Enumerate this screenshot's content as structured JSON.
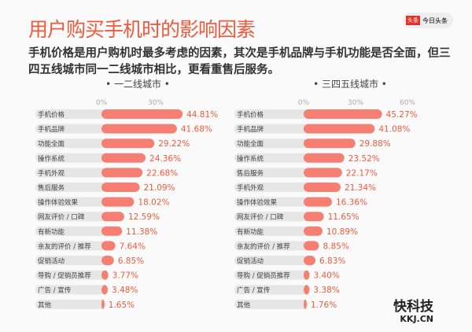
{
  "header": {
    "title": "用户购买手机时的影响因素",
    "subtitle": "手机价格是用户购机时最多考虑的因素，其次是手机品牌与手机功能是否全面，但三四五线城市同一二线城市相比，更看重售后服务。",
    "logo_badge": "头条",
    "logo_text": "今日头条"
  },
  "watermark": {
    "text": "快科技",
    "url_text": "KKJ.CN"
  },
  "colors": {
    "bar": "#f47f72",
    "track": "#e6e6e6",
    "value": "#ef5a3c"
  },
  "chart_data": [
    {
      "type": "bar",
      "orientation": "horizontal",
      "title": "一二线城市",
      "unit": "%",
      "ticks": [
        "0%",
        "30%"
      ],
      "categories": [
        "手机价格",
        "手机品牌",
        "功能全面",
        "操作系统",
        "手机外观",
        "售后服务",
        "操作体验效果",
        "网友评价 / 口碑",
        "有新功能",
        "亲友的评价 / 推荐",
        "促销活动",
        "导购 / 促销员推荐",
        "广告 / 宣传",
        "其他"
      ],
      "values": [
        44.81,
        41.68,
        29.22,
        24.36,
        22.68,
        21.09,
        18.02,
        12.59,
        11.38,
        7.64,
        6.85,
        3.77,
        3.48,
        1.65
      ]
    },
    {
      "type": "bar",
      "orientation": "horizontal",
      "title": "三四五线城市",
      "unit": "%",
      "ticks": [
        "0%",
        "30%",
        "60%"
      ],
      "categories": [
        "手机价格",
        "手机品牌",
        "功能全面",
        "操作系统",
        "售后服务",
        "手机外观",
        "操作体验效果",
        "网友评价 / 口碑",
        "有新功能",
        "亲友的评价 / 推荐",
        "促销活动",
        "导购 / 促销员推荐",
        "广告 / 宣传",
        "其他"
      ],
      "values": [
        45.27,
        41.08,
        29.88,
        23.52,
        22.17,
        21.34,
        16.36,
        11.65,
        10.89,
        8.85,
        6.83,
        3.4,
        3.38,
        1.76
      ]
    }
  ]
}
